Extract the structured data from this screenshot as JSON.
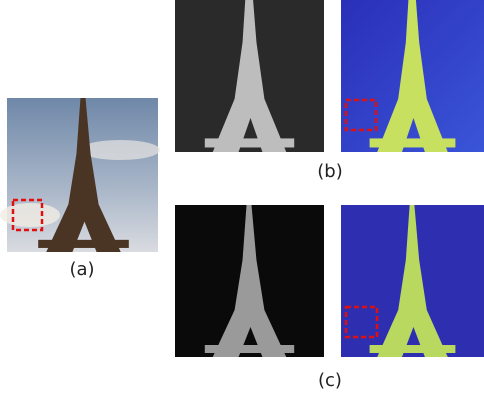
{
  "labels": {
    "a": "(a)",
    "b": "(b)",
    "c": "(c)"
  }
}
